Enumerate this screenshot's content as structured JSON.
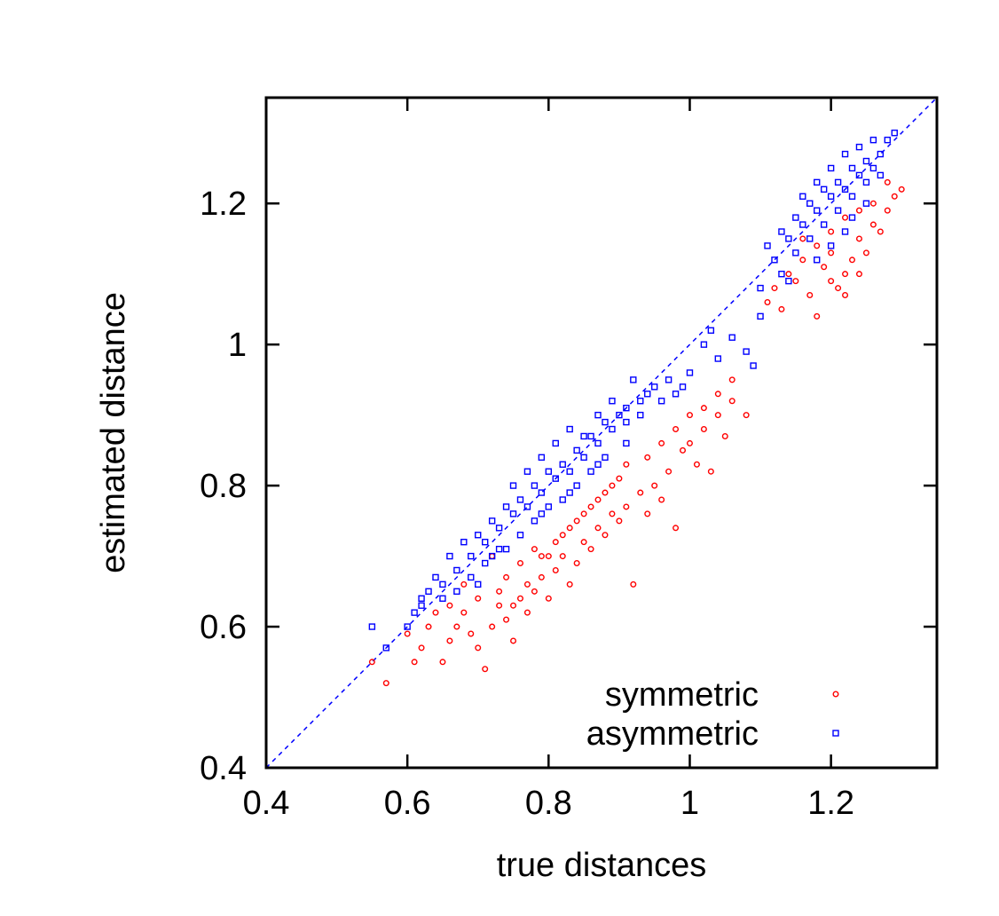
{
  "chart_data": {
    "type": "scatter",
    "xlabel": "true distances",
    "ylabel": "estimated distance",
    "xlim": [
      0.4,
      1.35
    ],
    "ylim": [
      0.4,
      1.35
    ],
    "x_ticks": [
      "0.4",
      "0.6",
      "0.8",
      "1",
      "1.2"
    ],
    "y_ticks": [
      "0.4",
      "0.6",
      "0.8",
      "1",
      "1.2"
    ],
    "x_tick_values": [
      0.4,
      0.6,
      0.8,
      1.0,
      1.2
    ],
    "y_tick_values": [
      0.4,
      0.6,
      0.8,
      1.0,
      1.2
    ],
    "reference_line": {
      "style": "dashed",
      "color": "#0000ff",
      "from": [
        0.4,
        0.4
      ],
      "to": [
        1.35,
        1.35
      ]
    },
    "legend_position": "bottom-right",
    "grid": false,
    "series": [
      {
        "name": "symmetric",
        "color": "#ff0000",
        "marker": "circle",
        "points": [
          [
            0.55,
            0.55
          ],
          [
            0.57,
            0.52
          ],
          [
            0.6,
            0.59
          ],
          [
            0.61,
            0.55
          ],
          [
            0.62,
            0.57
          ],
          [
            0.63,
            0.6
          ],
          [
            0.64,
            0.62
          ],
          [
            0.65,
            0.55
          ],
          [
            0.66,
            0.58
          ],
          [
            0.67,
            0.6
          ],
          [
            0.68,
            0.62
          ],
          [
            0.69,
            0.59
          ],
          [
            0.7,
            0.57
          ],
          [
            0.71,
            0.54
          ],
          [
            0.72,
            0.6
          ],
          [
            0.73,
            0.63
          ],
          [
            0.74,
            0.61
          ],
          [
            0.75,
            0.58
          ],
          [
            0.76,
            0.64
          ],
          [
            0.77,
            0.62
          ],
          [
            0.78,
            0.65
          ],
          [
            0.79,
            0.67
          ],
          [
            0.8,
            0.64
          ],
          [
            0.81,
            0.68
          ],
          [
            0.82,
            0.7
          ],
          [
            0.83,
            0.66
          ],
          [
            0.84,
            0.69
          ],
          [
            0.85,
            0.72
          ],
          [
            0.86,
            0.71
          ],
          [
            0.87,
            0.74
          ],
          [
            0.88,
            0.73
          ],
          [
            0.89,
            0.76
          ],
          [
            0.9,
            0.75
          ],
          [
            0.91,
            0.77
          ],
          [
            0.92,
            0.66
          ],
          [
            0.93,
            0.79
          ],
          [
            0.94,
            0.76
          ],
          [
            0.95,
            0.8
          ],
          [
            0.96,
            0.78
          ],
          [
            0.97,
            0.82
          ],
          [
            0.98,
            0.74
          ],
          [
            0.99,
            0.85
          ],
          [
            1.0,
            0.86
          ],
          [
            1.01,
            0.83
          ],
          [
            1.02,
            0.88
          ],
          [
            1.03,
            0.82
          ],
          [
            1.04,
            0.9
          ],
          [
            1.05,
            0.87
          ],
          [
            1.06,
            0.92
          ],
          [
            1.08,
            0.9
          ],
          [
            0.72,
            0.7
          ],
          [
            0.74,
            0.67
          ],
          [
            0.76,
            0.69
          ],
          [
            0.78,
            0.71
          ],
          [
            0.8,
            0.7
          ],
          [
            0.82,
            0.73
          ],
          [
            0.84,
            0.75
          ],
          [
            0.86,
            0.77
          ],
          [
            0.88,
            0.79
          ],
          [
            0.9,
            0.81
          ],
          [
            0.73,
            0.65
          ],
          [
            0.75,
            0.63
          ],
          [
            0.77,
            0.66
          ],
          [
            0.79,
            0.7
          ],
          [
            0.81,
            0.72
          ],
          [
            0.83,
            0.74
          ],
          [
            0.85,
            0.76
          ],
          [
            0.87,
            0.78
          ],
          [
            0.89,
            0.8
          ],
          [
            0.91,
            0.83
          ],
          [
            0.94,
            0.84
          ],
          [
            0.96,
            0.86
          ],
          [
            0.98,
            0.88
          ],
          [
            1.0,
            0.9
          ],
          [
            1.02,
            0.91
          ],
          [
            1.04,
            0.93
          ],
          [
            1.06,
            0.95
          ],
          [
            0.7,
            0.64
          ],
          [
            0.68,
            0.66
          ],
          [
            0.66,
            0.63
          ],
          [
            1.11,
            1.06
          ],
          [
            1.12,
            1.08
          ],
          [
            1.13,
            1.05
          ],
          [
            1.14,
            1.1
          ],
          [
            1.15,
            1.09
          ],
          [
            1.16,
            1.12
          ],
          [
            1.17,
            1.07
          ],
          [
            1.18,
            1.04
          ],
          [
            1.19,
            1.11
          ],
          [
            1.2,
            1.13
          ],
          [
            1.21,
            1.08
          ],
          [
            1.22,
            1.1
          ],
          [
            1.23,
            1.12
          ],
          [
            1.24,
            1.15
          ],
          [
            1.25,
            1.13
          ],
          [
            1.26,
            1.17
          ],
          [
            1.27,
            1.16
          ],
          [
            1.28,
            1.19
          ],
          [
            1.29,
            1.21
          ],
          [
            1.3,
            1.22
          ],
          [
            1.16,
            1.15
          ],
          [
            1.18,
            1.14
          ],
          [
            1.2,
            1.16
          ],
          [
            1.22,
            1.18
          ],
          [
            1.24,
            1.19
          ],
          [
            1.26,
            1.2
          ],
          [
            1.28,
            1.23
          ],
          [
            1.2,
            1.09
          ],
          [
            1.22,
            1.07
          ],
          [
            1.24,
            1.1
          ]
        ]
      },
      {
        "name": "asymmetric",
        "color": "#0000ff",
        "marker": "square",
        "points": [
          [
            0.55,
            0.6
          ],
          [
            0.57,
            0.57
          ],
          [
            0.6,
            0.6
          ],
          [
            0.61,
            0.62
          ],
          [
            0.62,
            0.63
          ],
          [
            0.63,
            0.65
          ],
          [
            0.64,
            0.67
          ],
          [
            0.65,
            0.66
          ],
          [
            0.66,
            0.7
          ],
          [
            0.67,
            0.68
          ],
          [
            0.68,
            0.72
          ],
          [
            0.69,
            0.7
          ],
          [
            0.7,
            0.73
          ],
          [
            0.71,
            0.72
          ],
          [
            0.72,
            0.75
          ],
          [
            0.73,
            0.74
          ],
          [
            0.74,
            0.77
          ],
          [
            0.75,
            0.76
          ],
          [
            0.76,
            0.78
          ],
          [
            0.77,
            0.77
          ],
          [
            0.78,
            0.8
          ],
          [
            0.79,
            0.79
          ],
          [
            0.8,
            0.82
          ],
          [
            0.81,
            0.81
          ],
          [
            0.82,
            0.83
          ],
          [
            0.83,
            0.82
          ],
          [
            0.84,
            0.85
          ],
          [
            0.85,
            0.84
          ],
          [
            0.86,
            0.87
          ],
          [
            0.87,
            0.86
          ],
          [
            0.88,
            0.89
          ],
          [
            0.89,
            0.88
          ],
          [
            0.9,
            0.9
          ],
          [
            0.91,
            0.91
          ],
          [
            0.92,
            0.95
          ],
          [
            0.93,
            0.92
          ],
          [
            0.94,
            0.93
          ],
          [
            0.95,
            0.94
          ],
          [
            0.96,
            0.92
          ],
          [
            0.97,
            0.95
          ],
          [
            0.98,
            0.93
          ],
          [
            0.99,
            0.94
          ],
          [
            1.0,
            0.96
          ],
          [
            1.02,
            1.0
          ],
          [
            1.03,
            1.02
          ],
          [
            1.04,
            0.98
          ],
          [
            1.06,
            1.01
          ],
          [
            1.08,
            0.99
          ],
          [
            1.09,
            0.97
          ],
          [
            1.1,
            1.04
          ],
          [
            0.7,
            0.66
          ],
          [
            0.72,
            0.7
          ],
          [
            0.74,
            0.71
          ],
          [
            0.76,
            0.73
          ],
          [
            0.78,
            0.75
          ],
          [
            0.8,
            0.77
          ],
          [
            0.82,
            0.78
          ],
          [
            0.84,
            0.8
          ],
          [
            0.86,
            0.82
          ],
          [
            0.88,
            0.84
          ],
          [
            0.75,
            0.8
          ],
          [
            0.77,
            0.82
          ],
          [
            0.79,
            0.84
          ],
          [
            0.81,
            0.86
          ],
          [
            0.83,
            0.88
          ],
          [
            0.85,
            0.87
          ],
          [
            0.87,
            0.9
          ],
          [
            0.89,
            0.92
          ],
          [
            0.91,
            0.89
          ],
          [
            0.93,
            0.9
          ],
          [
            0.71,
            0.69
          ],
          [
            0.73,
            0.71
          ],
          [
            0.79,
            0.76
          ],
          [
            0.83,
            0.79
          ],
          [
            0.87,
            0.83
          ],
          [
            0.91,
            0.86
          ],
          [
            0.65,
            0.64
          ],
          [
            0.67,
            0.65
          ],
          [
            0.69,
            0.67
          ],
          [
            0.62,
            0.64
          ],
          [
            1.1,
            1.08
          ],
          [
            1.11,
            1.14
          ],
          [
            1.12,
            1.12
          ],
          [
            1.13,
            1.16
          ],
          [
            1.14,
            1.15
          ],
          [
            1.15,
            1.18
          ],
          [
            1.16,
            1.17
          ],
          [
            1.17,
            1.2
          ],
          [
            1.18,
            1.19
          ],
          [
            1.19,
            1.22
          ],
          [
            1.2,
            1.21
          ],
          [
            1.21,
            1.23
          ],
          [
            1.22,
            1.22
          ],
          [
            1.23,
            1.25
          ],
          [
            1.24,
            1.24
          ],
          [
            1.25,
            1.26
          ],
          [
            1.26,
            1.25
          ],
          [
            1.27,
            1.27
          ],
          [
            1.28,
            1.29
          ],
          [
            1.29,
            1.3
          ],
          [
            1.15,
            1.13
          ],
          [
            1.17,
            1.15
          ],
          [
            1.19,
            1.17
          ],
          [
            1.21,
            1.19
          ],
          [
            1.23,
            1.21
          ],
          [
            1.25,
            1.23
          ],
          [
            1.27,
            1.24
          ],
          [
            1.18,
            1.12
          ],
          [
            1.2,
            1.14
          ],
          [
            1.22,
            1.16
          ],
          [
            1.16,
            1.21
          ],
          [
            1.18,
            1.23
          ],
          [
            1.2,
            1.25
          ],
          [
            1.22,
            1.27
          ],
          [
            1.24,
            1.28
          ],
          [
            1.26,
            1.29
          ],
          [
            1.13,
            1.1
          ],
          [
            1.14,
            1.09
          ],
          [
            1.23,
            1.18
          ],
          [
            1.25,
            1.2
          ]
        ]
      }
    ]
  }
}
